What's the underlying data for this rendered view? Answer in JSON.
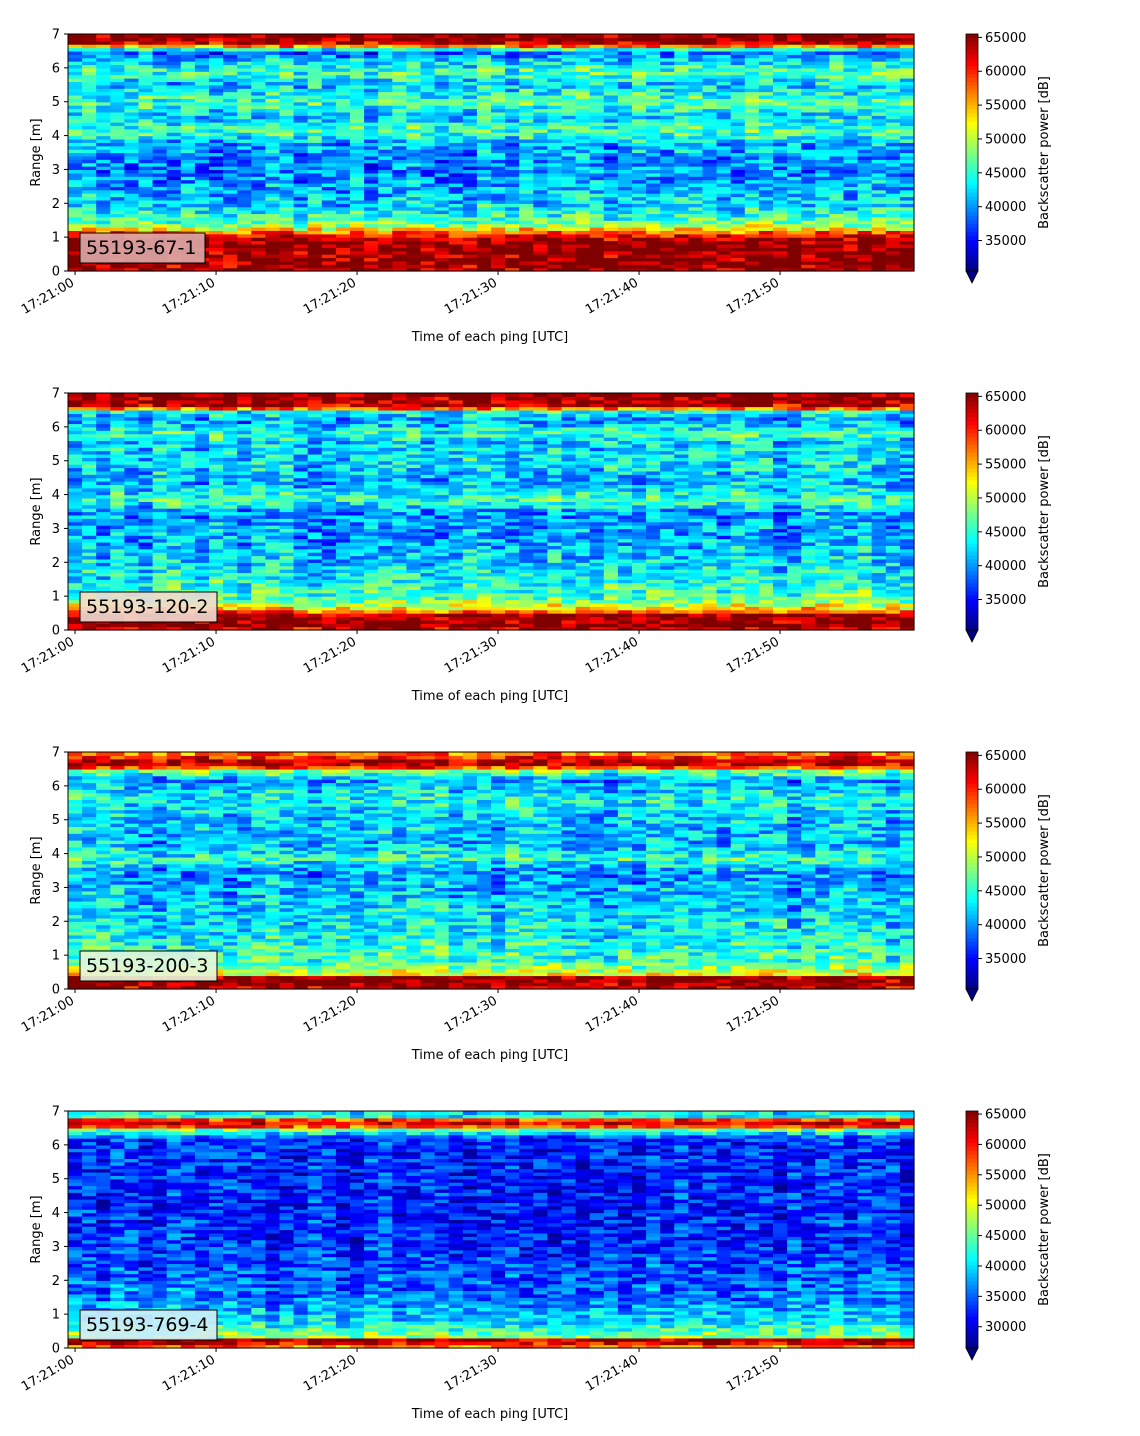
{
  "chart_data": [
    {
      "type": "heatmap",
      "label": "55193-67-1",
      "label_bg": "#dcaaaa",
      "xlabel": "Time of each ping [UTC]",
      "ylabel": "Range [m]",
      "x_ticks": [
        "17:21:00",
        "17:21:10",
        "17:21:20",
        "17:21:30",
        "17:21:40",
        "17:21:50"
      ],
      "xlim_seconds": [
        -0.5,
        59.5
      ],
      "ylim": [
        0,
        7
      ],
      "y_ticks": [
        0,
        1,
        2,
        3,
        4,
        5,
        6,
        7
      ],
      "colorbar": {
        "label": "Backscatter power [dB]",
        "cmap": "jet",
        "vmin": 30500,
        "vmax": 65500,
        "ticks": [
          35000,
          40000,
          45000,
          50000,
          55000,
          60000,
          65000
        ],
        "extend": "min"
      },
      "profile": [
        {
          "range": 0.0,
          "value": 64000
        },
        {
          "range": 0.2,
          "value": 65000
        },
        {
          "range": 0.9,
          "value": 65000
        },
        {
          "range": 1.1,
          "value": 60000
        },
        {
          "range": 1.3,
          "value": 50000
        },
        {
          "range": 1.6,
          "value": 45000
        },
        {
          "range": 2.0,
          "value": 42000
        },
        {
          "range": 3.0,
          "value": 39000
        },
        {
          "range": 3.8,
          "value": 41000
        },
        {
          "range": 4.1,
          "value": 46000
        },
        {
          "range": 4.6,
          "value": 42000
        },
        {
          "range": 5.0,
          "value": 46000
        },
        {
          "range": 5.5,
          "value": 42000
        },
        {
          "range": 5.9,
          "value": 46000
        },
        {
          "range": 6.3,
          "value": 41000
        },
        {
          "range": 6.5,
          "value": 38000
        },
        {
          "range": 6.7,
          "value": 62000
        },
        {
          "range": 6.8,
          "value": 65000
        },
        {
          "range": 7.0,
          "value": 65000
        }
      ]
    },
    {
      "type": "heatmap",
      "label": "55193-120-2",
      "label_bg": "#f0dcd2",
      "xlabel": "Time of each ping [UTC]",
      "ylabel": "Range [m]",
      "x_ticks": [
        "17:21:00",
        "17:21:10",
        "17:21:20",
        "17:21:30",
        "17:21:40",
        "17:21:50"
      ],
      "xlim_seconds": [
        -0.5,
        59.5
      ],
      "ylim": [
        0,
        7
      ],
      "y_ticks": [
        0,
        1,
        2,
        3,
        4,
        5,
        6,
        7
      ],
      "colorbar": {
        "label": "Backscatter power [dB]",
        "cmap": "jet",
        "vmin": 30500,
        "vmax": 65500,
        "ticks": [
          35000,
          40000,
          45000,
          50000,
          55000,
          60000,
          65000
        ],
        "extend": "min"
      },
      "profile": [
        {
          "range": 0.0,
          "value": 62000
        },
        {
          "range": 0.15,
          "value": 65000
        },
        {
          "range": 0.45,
          "value": 65000
        },
        {
          "range": 0.6,
          "value": 55000
        },
        {
          "range": 0.9,
          "value": 47000
        },
        {
          "range": 1.5,
          "value": 44000
        },
        {
          "range": 2.5,
          "value": 41000
        },
        {
          "range": 3.5,
          "value": 40000
        },
        {
          "range": 3.85,
          "value": 46000
        },
        {
          "range": 4.3,
          "value": 41000
        },
        {
          "range": 5.0,
          "value": 43000
        },
        {
          "range": 5.6,
          "value": 42000
        },
        {
          "range": 5.8,
          "value": 46000
        },
        {
          "range": 6.2,
          "value": 40000
        },
        {
          "range": 6.45,
          "value": 44000
        },
        {
          "range": 6.6,
          "value": 63000
        },
        {
          "range": 6.8,
          "value": 65000
        },
        {
          "range": 7.0,
          "value": 65000
        }
      ]
    },
    {
      "type": "heatmap",
      "label": "55193-200-3",
      "label_bg": "#e6f5dc",
      "xlabel": "Time of each ping [UTC]",
      "ylabel": "Range [m]",
      "x_ticks": [
        "17:21:00",
        "17:21:10",
        "17:21:20",
        "17:21:30",
        "17:21:40",
        "17:21:50"
      ],
      "xlim_seconds": [
        -0.5,
        59.5
      ],
      "ylim": [
        0,
        7
      ],
      "y_ticks": [
        0,
        1,
        2,
        3,
        4,
        5,
        6,
        7
      ],
      "colorbar": {
        "label": "Backscatter power [dB]",
        "cmap": "jet",
        "vmin": 30500,
        "vmax": 65500,
        "ticks": [
          35000,
          40000,
          45000,
          50000,
          55000,
          60000,
          65000
        ],
        "extend": "min"
      },
      "profile": [
        {
          "range": 0.0,
          "value": 62000
        },
        {
          "range": 0.1,
          "value": 65000
        },
        {
          "range": 0.35,
          "value": 65000
        },
        {
          "range": 0.45,
          "value": 52000
        },
        {
          "range": 0.8,
          "value": 46000
        },
        {
          "range": 1.5,
          "value": 44000
        },
        {
          "range": 2.5,
          "value": 42000
        },
        {
          "range": 3.5,
          "value": 40000
        },
        {
          "range": 3.85,
          "value": 45000
        },
        {
          "range": 4.3,
          "value": 41000
        },
        {
          "range": 5.0,
          "value": 42000
        },
        {
          "range": 5.7,
          "value": 44000
        },
        {
          "range": 6.2,
          "value": 40000
        },
        {
          "range": 6.45,
          "value": 48000
        },
        {
          "range": 6.6,
          "value": 63000
        },
        {
          "range": 6.8,
          "value": 64000
        },
        {
          "range": 6.9,
          "value": 55000
        },
        {
          "range": 7.0,
          "value": 60000
        }
      ]
    },
    {
      "type": "heatmap",
      "label": "55193-769-4",
      "label_bg": "#d2ecf8",
      "xlabel": "Time of each ping [UTC]",
      "ylabel": "Range [m]",
      "x_ticks": [
        "17:21:00",
        "17:21:10",
        "17:21:20",
        "17:21:30",
        "17:21:40",
        "17:21:50"
      ],
      "xlim_seconds": [
        -0.5,
        59.5
      ],
      "ylim": [
        0,
        7
      ],
      "y_ticks": [
        0,
        1,
        2,
        3,
        4,
        5,
        6,
        7
      ],
      "colorbar": {
        "label": "Backscatter power [dB]",
        "cmap": "jet",
        "vmin": 26500,
        "vmax": 65500,
        "ticks": [
          30000,
          35000,
          40000,
          45000,
          50000,
          55000,
          60000,
          65000
        ],
        "extend": "min"
      },
      "profile": [
        {
          "range": 0.0,
          "value": 52000
        },
        {
          "range": 0.1,
          "value": 60000
        },
        {
          "range": 0.25,
          "value": 64000
        },
        {
          "range": 0.35,
          "value": 47000
        },
        {
          "range": 0.8,
          "value": 40000
        },
        {
          "range": 1.5,
          "value": 36000
        },
        {
          "range": 3.0,
          "value": 33000
        },
        {
          "range": 5.0,
          "value": 32500
        },
        {
          "range": 6.2,
          "value": 33000
        },
        {
          "range": 6.45,
          "value": 45000
        },
        {
          "range": 6.6,
          "value": 64000
        },
        {
          "range": 6.75,
          "value": 58000
        },
        {
          "range": 6.85,
          "value": 42000
        },
        {
          "range": 7.0,
          "value": 40000
        }
      ]
    }
  ]
}
